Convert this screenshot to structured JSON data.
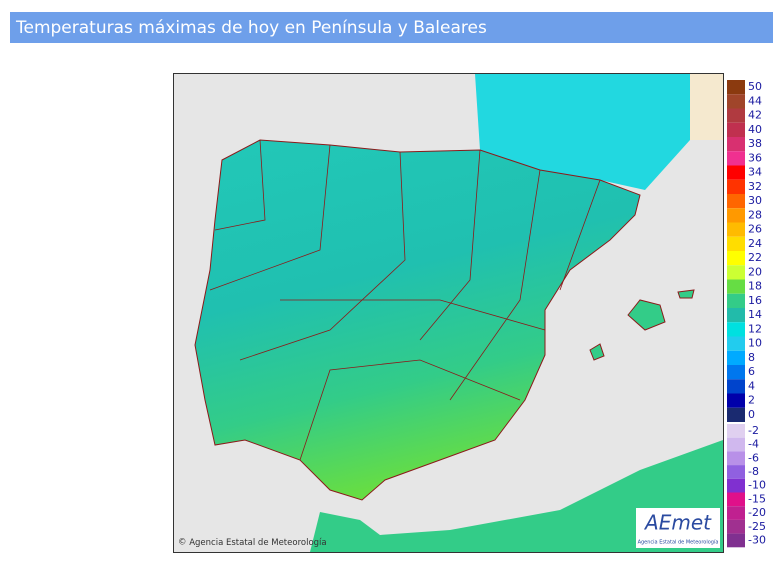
{
  "header": {
    "title": "Temperaturas máximas de hoy en Península y Baleares"
  },
  "map": {
    "attribution": "Agencia Estatal de Meteorología",
    "logo": {
      "name": "AEmet",
      "subtitle": "Agencia Estatal de Meteorología"
    }
  },
  "legend": {
    "upper": [
      {
        "label": "50",
        "color": "#8b3a0f"
      },
      {
        "label": "44",
        "color": "#a0452a"
      },
      {
        "label": "42",
        "color": "#b03a40"
      },
      {
        "label": "40",
        "color": "#c0304f"
      },
      {
        "label": "38",
        "color": "#d83070"
      },
      {
        "label": "36",
        "color": "#f03090"
      },
      {
        "label": "34",
        "color": "#ff0000"
      },
      {
        "label": "32",
        "color": "#ff3300"
      },
      {
        "label": "30",
        "color": "#ff6600"
      },
      {
        "label": "28",
        "color": "#ff9900"
      },
      {
        "label": "26",
        "color": "#ffbb00"
      },
      {
        "label": "24",
        "color": "#ffdd00"
      },
      {
        "label": "22",
        "color": "#ffff00"
      },
      {
        "label": "20",
        "color": "#ccff33"
      },
      {
        "label": "18",
        "color": "#66dd44"
      },
      {
        "label": "16",
        "color": "#33cc88"
      },
      {
        "label": "14",
        "color": "#22bbaa"
      },
      {
        "label": "12",
        "color": "#00e0e0"
      },
      {
        "label": "10",
        "color": "#22ccee"
      },
      {
        "label": "8",
        "color": "#00aaff"
      },
      {
        "label": "6",
        "color": "#0077ee"
      },
      {
        "label": "4",
        "color": "#0044cc"
      },
      {
        "label": "2",
        "color": "#0000aa"
      },
      {
        "label": "0",
        "color": "#1a2a70"
      }
    ],
    "lower": [
      {
        "label": "-2",
        "color": "#e0d0f0"
      },
      {
        "label": "-4",
        "color": "#d0b8ee"
      },
      {
        "label": "-6",
        "color": "#b890e8"
      },
      {
        "label": "-8",
        "color": "#9060e0"
      },
      {
        "label": "-10",
        "color": "#8030d0"
      },
      {
        "label": "-15",
        "color": "#e0108a"
      },
      {
        "label": "-20",
        "color": "#c02090"
      },
      {
        "label": "-25",
        "color": "#a03090"
      },
      {
        "label": "-30",
        "color": "#803090"
      }
    ]
  }
}
